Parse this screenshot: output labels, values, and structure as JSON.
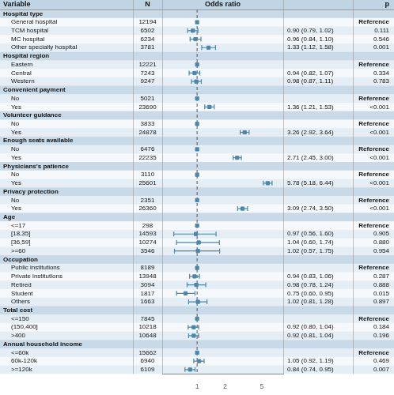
{
  "chart_data": {
    "type": "forest",
    "columns": [
      "Variable",
      "N",
      "Odds ratio",
      "p"
    ],
    "categories": [
      "Hospital type",
      "General hospital",
      "TCM hospital",
      "MC hospital",
      "Other specialty hospital",
      "Hospital region",
      "Eastern",
      "Central",
      "Western",
      "Convenient payment",
      "No",
      "Yes",
      "Volunteer guidance",
      "No",
      "Yes",
      "Enough seats available",
      "No",
      "Yes",
      "Physicians's patience",
      "No",
      "Yes",
      "Privacy protection",
      "No",
      "Yes",
      "Age",
      "<=17",
      "[18,35]",
      "[36,59]",
      ">=60",
      "Occupation",
      "Public institutions",
      "Private institutions",
      "Retired",
      "Student",
      "Others",
      "Total cost",
      "<=150",
      "(150,400]",
      ">400",
      "Annual household income",
      "<=60k",
      "60k-120k",
      ">=120k"
    ],
    "n": [
      null,
      12194,
      6502,
      6234,
      3781,
      null,
      12221,
      7243,
      9247,
      null,
      5021,
      23690,
      null,
      3833,
      24878,
      null,
      6476,
      22235,
      null,
      3110,
      25601,
      null,
      2351,
      26360,
      null,
      298,
      14593,
      10274,
      3546,
      null,
      8189,
      13948,
      3094,
      1817,
      1663,
      null,
      7845,
      10218,
      10648,
      null,
      15662,
      6940,
      6109
    ],
    "values": [
      null,
      1.0,
      0.9,
      0.96,
      1.33,
      null,
      1.0,
      0.94,
      0.98,
      null,
      1.0,
      1.36,
      null,
      1.0,
      3.26,
      null,
      1.0,
      2.71,
      null,
      1.0,
      5.78,
      null,
      1.0,
      3.09,
      null,
      1.0,
      0.97,
      1.04,
      1.02,
      null,
      1.0,
      0.94,
      0.98,
      0.75,
      1.02,
      null,
      1.0,
      0.92,
      0.92,
      null,
      1.0,
      1.05,
      0.84
    ],
    "ci_lo": [
      null,
      1.0,
      0.79,
      0.84,
      1.12,
      null,
      1.0,
      0.82,
      0.87,
      null,
      1.0,
      1.21,
      null,
      1.0,
      2.92,
      null,
      1.0,
      2.45,
      null,
      1.0,
      5.18,
      null,
      1.0,
      2.74,
      null,
      1.0,
      0.56,
      0.6,
      0.57,
      null,
      1.0,
      0.83,
      0.78,
      0.6,
      0.81,
      null,
      1.0,
      0.8,
      0.81,
      null,
      1.0,
      0.92,
      0.74
    ],
    "ci_hi": [
      null,
      1.0,
      1.02,
      1.1,
      1.58,
      null,
      1.0,
      1.07,
      1.11,
      null,
      1.0,
      1.53,
      null,
      1.0,
      3.64,
      null,
      1.0,
      3.0,
      null,
      1.0,
      6.44,
      null,
      1.0,
      3.5,
      null,
      1.0,
      1.6,
      1.74,
      1.75,
      null,
      1.0,
      1.06,
      1.24,
      0.95,
      1.28,
      null,
      1.0,
      1.04,
      1.04,
      null,
      1.0,
      1.19,
      0.95
    ],
    "value_labels": [
      null,
      null,
      "0.90 (0.79, 1.02)",
      "0.96 (0.84, 1.10)",
      "1.33 (1.12, 1.58)",
      null,
      null,
      "0.94 (0.82, 1.07)",
      "0.98 (0.87, 1.11)",
      null,
      null,
      "1.36 (1.21, 1.53)",
      null,
      null,
      "3.26 (2.92, 3.64)",
      null,
      null,
      "2.71 (2.45, 3.00)",
      null,
      null,
      "5.78 (5.18, 6.44)",
      null,
      null,
      "3.09 (2.74, 3.50)",
      null,
      null,
      "0.97 (0.56, 1.60)",
      "1.04 (0.60, 1.74)",
      "1.02 (0.57, 1.75)",
      null,
      null,
      "0.94 (0.83, 1.06)",
      "0.98 (0.78, 1.24)",
      "0.75 (0.60, 0.95)",
      "1.02 (0.81, 1.28)",
      null,
      null,
      "0.92 (0.80, 1.04)",
      "0.92 (0.81, 1.04)",
      null,
      null,
      "1.05 (0.92, 1.19)",
      "0.84 (0.74, 0.95)"
    ],
    "p": [
      null,
      "Reference",
      "0.111",
      "0.546",
      "0.001",
      null,
      "Reference",
      "0.334",
      "0.783",
      null,
      "Reference",
      "<0.001",
      null,
      "Reference",
      "<0.001",
      null,
      "Reference",
      "<0.001",
      null,
      "Reference",
      "<0.001",
      null,
      "Reference",
      "<0.001",
      null,
      "Reference",
      "0.905",
      "0.880",
      "0.954",
      null,
      "Reference",
      "0.287",
      "0.888",
      "0.015",
      "0.897",
      null,
      "Reference",
      "0.184",
      "0.196",
      null,
      "Reference",
      "0.469",
      "0.007"
    ],
    "vline": 1,
    "color": "#4a86ae",
    "log": "x",
    "xlim": [
      0.42,
      8.5
    ],
    "xticks": [
      1,
      2,
      5
    ],
    "grid": false
  }
}
